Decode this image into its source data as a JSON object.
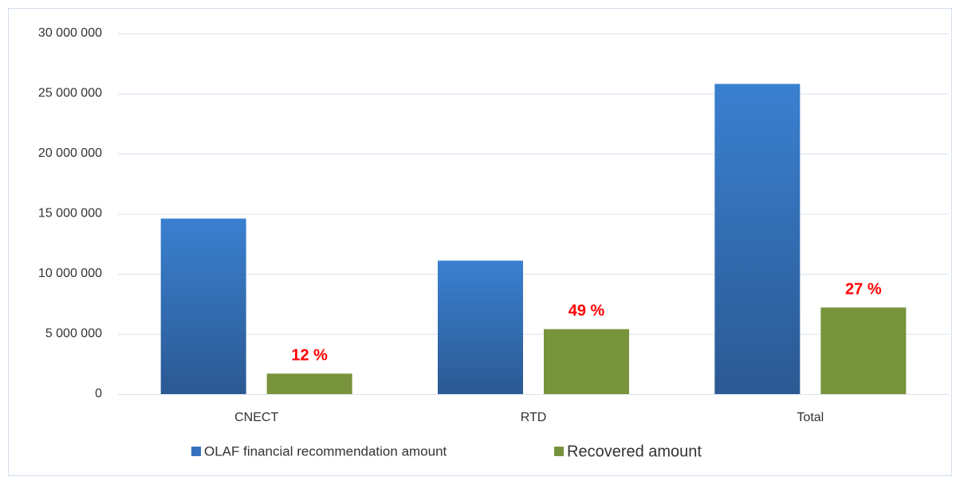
{
  "chart_data": {
    "type": "bar",
    "categories": [
      "CNECT",
      "RTD",
      "Total"
    ],
    "series": [
      {
        "name": "OLAF financial recommendation amount",
        "color": "#3470bd",
        "values": [
          14600000,
          11100000,
          25800000
        ]
      },
      {
        "name": "Recovered amount",
        "color": "#77933c",
        "values": [
          1700000,
          5400000,
          7200000
        ]
      }
    ],
    "annotations": [
      "12 %",
      "49 %",
      "27 %"
    ],
    "ylim": [
      0,
      30000000
    ],
    "yticks": [
      0,
      {
        "value": 5000000,
        "label": "5 000 000"
      },
      {
        "value": 10000000,
        "label": "10 000 000"
      },
      {
        "value": 15000000,
        "label": "15 000 000"
      },
      {
        "value": 20000000,
        "label": "20 000 000"
      },
      {
        "value": 25000000,
        "label": "25 000 000"
      },
      {
        "value": 30000000,
        "label": "30 000 000"
      }
    ],
    "grid": true,
    "legend": "bottom"
  }
}
